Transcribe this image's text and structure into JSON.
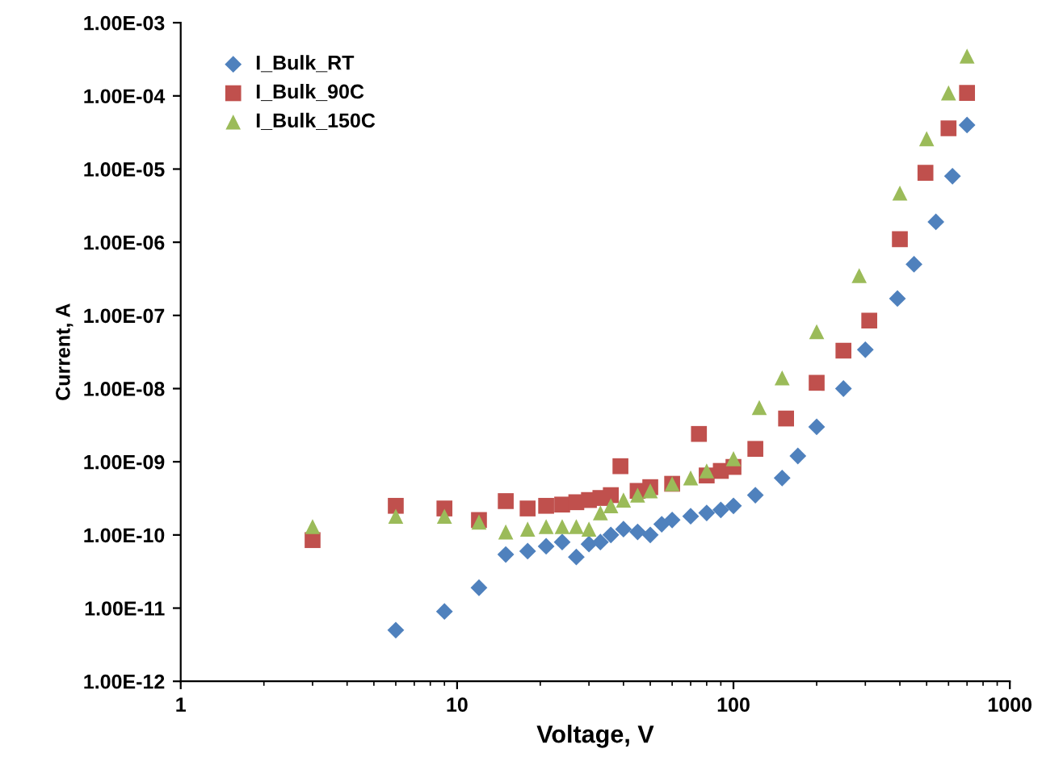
{
  "chart_data": {
    "type": "scatter",
    "xlabel": "Voltage, V",
    "ylabel": "Current, A",
    "log": "xy",
    "xlim": [
      1,
      1000
    ],
    "ylim": [
      1e-12,
      0.001
    ],
    "xticks": [
      1,
      10,
      100,
      1000
    ],
    "yticks": [
      {
        "value": 1e-12,
        "label": "1.00E-12"
      },
      {
        "value": 1e-11,
        "label": "1.00E-11"
      },
      {
        "value": 1e-10,
        "label": "1.00E-10"
      },
      {
        "value": 1e-09,
        "label": "1.00E-09"
      },
      {
        "value": 1e-08,
        "label": "1.00E-08"
      },
      {
        "value": 1e-07,
        "label": "1.00E-07"
      },
      {
        "value": 1e-06,
        "label": "1.00E-06"
      },
      {
        "value": 1e-05,
        "label": "1.00E-05"
      },
      {
        "value": 0.0001,
        "label": "1.00E-04"
      },
      {
        "value": 0.001,
        "label": "1.00E-03"
      }
    ],
    "grid": false,
    "legend": "top left",
    "series": [
      {
        "name": "I_Bulk_RT",
        "color": "#4f81bd",
        "marker": "diamond",
        "x": [
          6,
          9,
          12,
          15,
          18,
          21,
          24,
          27,
          30,
          33,
          36,
          40,
          45,
          50,
          55,
          60,
          70,
          80,
          90,
          100,
          120,
          150,
          171,
          200,
          250,
          300,
          392,
          450,
          540,
          620,
          700
        ],
        "values": [
          5e-12,
          9e-12,
          1.9e-11,
          5.4e-11,
          6e-11,
          7e-11,
          8e-11,
          5e-11,
          7.5e-11,
          8e-11,
          1e-10,
          1.2e-10,
          1.1e-10,
          1e-10,
          1.4e-10,
          1.6e-10,
          1.8e-10,
          2e-10,
          2.2e-10,
          2.5e-10,
          3.5e-10,
          6e-10,
          1.2e-09,
          3e-09,
          1e-08,
          3.4e-08,
          1.7e-07,
          5e-07,
          1.9e-06,
          8e-06,
          4e-05
        ]
      },
      {
        "name": "I_Bulk_90C",
        "color": "#c0504d",
        "marker": "square",
        "x": [
          3,
          6,
          9,
          12,
          15,
          18,
          21,
          24,
          27,
          30,
          33,
          36,
          39,
          45,
          50,
          60,
          75,
          80,
          90,
          100,
          120,
          155,
          200,
          250,
          310,
          400,
          495,
          600,
          700
        ],
        "values": [
          8.5e-11,
          2.5e-10,
          2.3e-10,
          1.6e-10,
          2.9e-10,
          2.3e-10,
          2.5e-10,
          2.6e-10,
          2.8e-10,
          3e-10,
          3.2e-10,
          3.5e-10,
          8.7e-10,
          4e-10,
          4.5e-10,
          5e-10,
          2.4e-09,
          6.5e-10,
          7.5e-10,
          8.5e-10,
          1.5e-09,
          3.9e-09,
          1.2e-08,
          3.3e-08,
          8.5e-08,
          1.1e-06,
          8.9e-06,
          3.6e-05,
          0.00011
        ]
      },
      {
        "name": "I_Bulk_150C",
        "color": "#9bbb59",
        "marker": "triangle",
        "x": [
          3,
          6,
          9,
          12,
          15,
          18,
          21,
          24,
          27,
          30,
          33,
          36,
          40,
          45,
          50,
          60,
          70,
          80,
          100,
          124,
          150,
          200,
          285,
          400,
          500,
          600,
          700
        ],
        "values": [
          1.3e-10,
          1.8e-10,
          1.8e-10,
          1.5e-10,
          1.1e-10,
          1.2e-10,
          1.3e-10,
          1.3e-10,
          1.3e-10,
          1.2e-10,
          2e-10,
          2.5e-10,
          3e-10,
          3.5e-10,
          4e-10,
          5e-10,
          6e-10,
          7.5e-10,
          1.1e-09,
          5.5e-09,
          1.4e-08,
          6e-08,
          3.5e-07,
          4.7e-06,
          2.6e-05,
          0.00011,
          0.00035
        ]
      }
    ]
  }
}
